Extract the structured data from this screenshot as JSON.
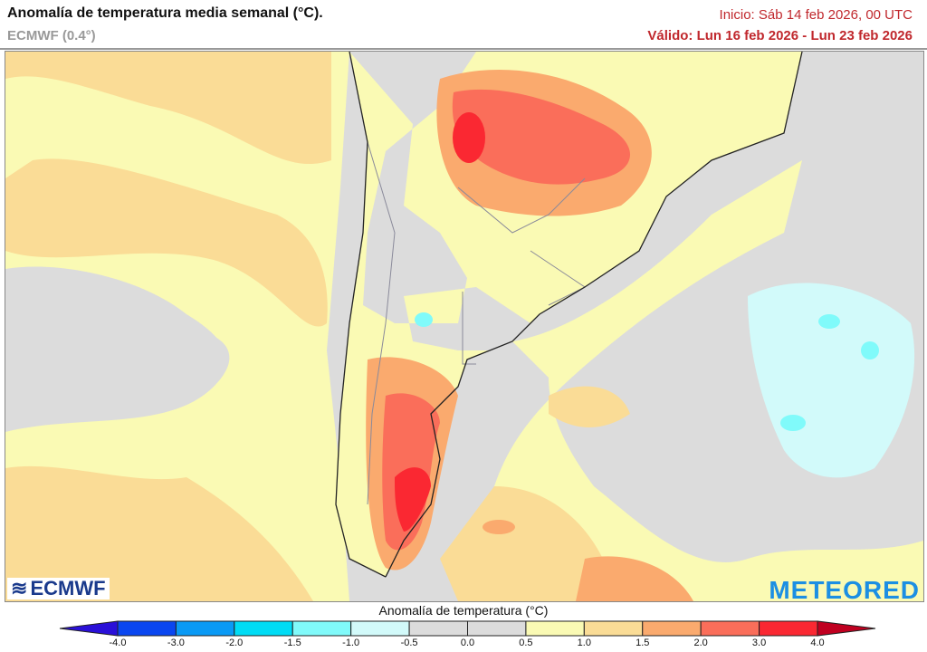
{
  "header": {
    "title": "Anomalía de temperatura media semanal (°C).",
    "model": "ECMWF (0.4°)",
    "init": "Inicio: Sáb 14 feb 2026, 00 UTC",
    "valid": "Válido: Lun 16 feb 2026 - Lun 23 feb 2026"
  },
  "logos": {
    "left": "ECMWF",
    "right": "METEORED"
  },
  "colorbar": {
    "title": "Anomalía de temperatura (°C)",
    "ticks": [
      "-4.0",
      "-3.0",
      "-2.0",
      "-1.5",
      "-1.0",
      "-0.5",
      "0.0",
      "0.5",
      "1.0",
      "1.5",
      "2.0",
      "3.0",
      "4.0"
    ],
    "low_extend_color": "#2a10d8",
    "high_extend_color": "#c00020",
    "colors": [
      "#0a46f0",
      "#0a9af5",
      "#00dcf5",
      "#80fafa",
      "#d2fafa",
      "#dcdcdc",
      "#dcdcdc",
      "#fafab4",
      "#fadc96",
      "#faaa6e",
      "#fa6e5a",
      "#fa2832"
    ]
  },
  "map": {
    "region": "South America (southern cone) and adjacent oceans",
    "background_color": "#dcdcdc"
  }
}
